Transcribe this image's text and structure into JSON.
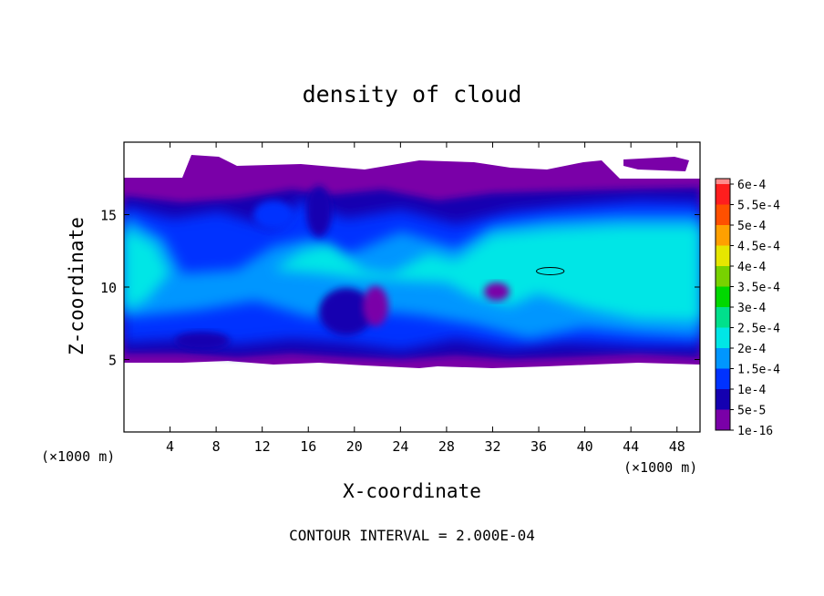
{
  "chart_data": {
    "type": "heatmap",
    "title": "density of cloud",
    "xlabel": "X-coordinate",
    "ylabel": "Z-coordinate",
    "x_unit": "(×1000 m)",
    "x_unit_right": "(×1000 m)",
    "xlim": [
      0,
      50
    ],
    "ylim": [
      0,
      20
    ],
    "x_ticks": [
      4,
      8,
      12,
      16,
      20,
      24,
      28,
      32,
      36,
      40,
      44,
      48
    ],
    "y_ticks": [
      5,
      10,
      15
    ],
    "footer": "CONTOUR INTERVAL = 2.000E-04",
    "colorbar": {
      "levels": [
        "1e-16",
        "5e-5",
        "1e-4",
        "1.5e-4",
        "2e-4",
        "2.5e-4",
        "3e-4",
        "3.5e-4",
        "4e-4",
        "4.5e-4",
        "5e-4",
        "5.5e-4",
        "6e-4"
      ],
      "colors": [
        "#7a00a8",
        "#1400b0",
        "#0032ff",
        "#0096ff",
        "#00e6e6",
        "#00e08c",
        "#00d800",
        "#78d200",
        "#e6e600",
        "#ffa000",
        "#ff5000",
        "#ff1e1e",
        "#ff8c8c"
      ]
    },
    "cloud_field": {
      "base_z": 5,
      "top_z": 17.2,
      "core_z": [
        7,
        15
      ],
      "core_contour": {
        "x_center": 37,
        "z_center": 11.1,
        "x_halfwidth": 1.2,
        "z_halfwidth": 0.25
      }
    },
    "grid": false,
    "legend": "right"
  }
}
